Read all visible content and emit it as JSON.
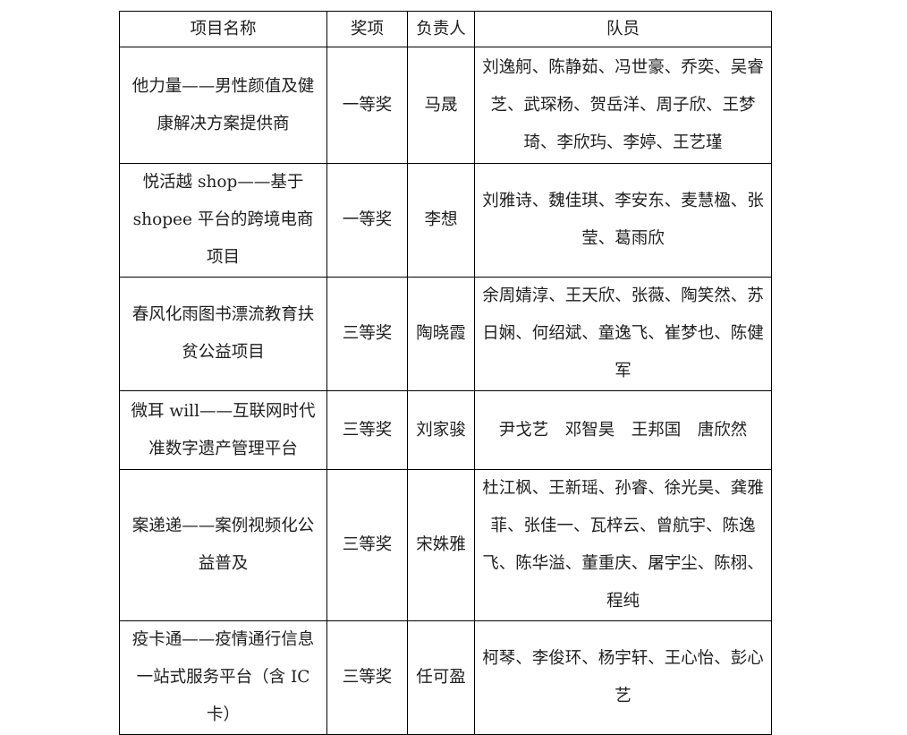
{
  "table": {
    "headers": [
      "项目名称",
      "奖项",
      "负责人",
      "队员"
    ],
    "rows": [
      {
        "project": "他力量——男性颜值及健康解决方案提供商",
        "award": "一等奖",
        "leader": "马晟",
        "members": "刘逸舸、陈静茹、冯世豪、乔奕、吴睿芝、武琛杨、贺岳洋、周子欣、王梦琦、李欣玙、李婷、王艺瑾"
      },
      {
        "project": "悦活越 shop——基于 shopee 平台的跨境电商项目",
        "award": "一等奖",
        "leader": "李想",
        "members": "刘雅诗、魏佳琪、李安东、麦慧楹、张莹、葛雨欣"
      },
      {
        "project": "春风化雨图书漂流教育扶贫公益项目",
        "award": "三等奖",
        "leader": "陶晓霞",
        "members": "余周婧淳、王天欣、张薇、陶笑然、苏日娴、何绍斌、童逸飞、崔梦也、陈健军"
      },
      {
        "project": "微耳 will——互联网时代准数字遗产管理平台",
        "award": "三等奖",
        "leader": "刘家骏",
        "members": "尹戈艺　邓智昊　王邦国　唐欣然"
      },
      {
        "project": "案递递——案例视频化公益普及",
        "award": "三等奖",
        "leader": "宋姝雅",
        "members": "杜江枫、王新瑶、孙睿、徐光昊、龚雅菲、张佳一、瓦梓云、曾航宇、陈逸飞、陈华溢、董重庆、屠宇尘、陈栩、程纯"
      },
      {
        "project": "疫卡通——疫情通行信息一站式服务平台（含 IC 卡）",
        "award": "三等奖",
        "leader": "任可盈",
        "members": "柯琴、李俊环、杨宇轩、王心怡、彭心艺"
      }
    ]
  }
}
